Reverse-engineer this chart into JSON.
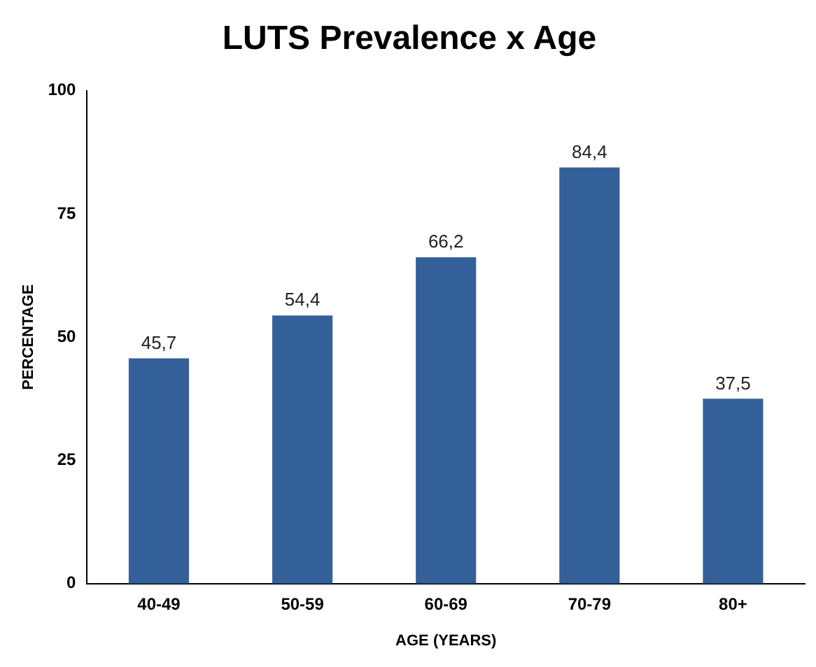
{
  "chart_data": {
    "type": "bar",
    "title": "LUTS Prevalence x Age",
    "xlabel": "AGE (YEARS)",
    "ylabel": "PERCENTAGE",
    "categories": [
      "40-49",
      "50-59",
      "60-69",
      "70-79",
      "80+"
    ],
    "values": [
      45.7,
      54.4,
      66.2,
      84.4,
      37.5
    ],
    "value_labels": [
      "45,7",
      "54,4",
      "66,2",
      "84,4",
      "37,5"
    ],
    "color": "#34609a",
    "ylim": [
      0,
      100
    ],
    "yticks": [
      0,
      25,
      50,
      75,
      100
    ],
    "grid": false,
    "legend": false
  }
}
